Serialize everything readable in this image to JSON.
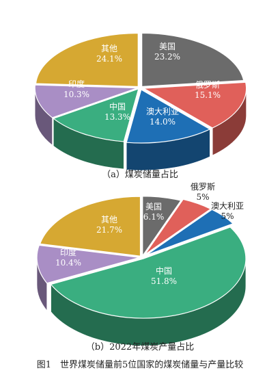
{
  "chart_data": [
    {
      "type": "pie",
      "caption": "（a）煤炭储量占比",
      "categories": [
        "美国",
        "俄罗斯",
        "澳大利亚",
        "中国",
        "印度",
        "其他"
      ],
      "values": [
        23.2,
        15.1,
        14.0,
        13.3,
        10.3,
        24.1
      ],
      "labels": [
        "23.2%",
        "15.1%",
        "14.0%",
        "13.3%",
        "10.3%",
        "24.1%"
      ],
      "colors": [
        "#6b6b6b",
        "#e0605a",
        "#1e6fb5",
        "#3aae80",
        "#a98ec5",
        "#d6a832"
      ],
      "label_outside": [
        false,
        false,
        false,
        false,
        false,
        false
      ]
    },
    {
      "type": "pie",
      "caption": "（b）2022年煤炭产量占比",
      "categories": [
        "美国",
        "俄罗斯",
        "澳大利亚",
        "中国",
        "印度",
        "其他"
      ],
      "values": [
        6.1,
        5,
        5,
        51.8,
        10.4,
        21.7
      ],
      "labels": [
        "6.1%",
        "5%",
        "5%",
        "51.8%",
        "10.4%",
        "21.7%"
      ],
      "colors": [
        "#6b6b6b",
        "#e0605a",
        "#1e6fb5",
        "#3aae80",
        "#a98ec5",
        "#d6a832"
      ],
      "label_outside": [
        false,
        true,
        true,
        false,
        false,
        false
      ]
    }
  ],
  "figure_caption": "图1　世界煤炭储量前5位国家的煤炭储量与产量比较"
}
